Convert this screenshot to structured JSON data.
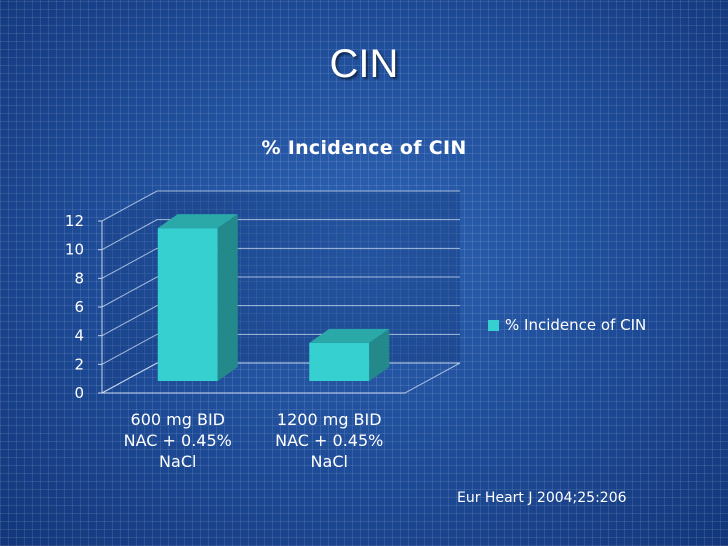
{
  "slide": {
    "title": "CIN",
    "source": "Eur Heart J 2004;25:206"
  },
  "chart_data": {
    "type": "bar",
    "title": "% Incidence of CIN",
    "categories": [
      [
        "600 mg BID",
        "NAC + 0.45%",
        "NaCl"
      ],
      [
        "1200 mg BID",
        "NAC + 0.45%",
        "NaCl"
      ]
    ],
    "series": [
      {
        "name": "% Incidence of CIN",
        "values": [
          11.5,
          3.5
        ],
        "color": "#35d0cf"
      }
    ],
    "ylim": [
      0,
      12
    ],
    "yticks": [
      0,
      2,
      4,
      6,
      8,
      10,
      12
    ],
    "grid": true,
    "three_d": true,
    "legend_position": "right"
  }
}
